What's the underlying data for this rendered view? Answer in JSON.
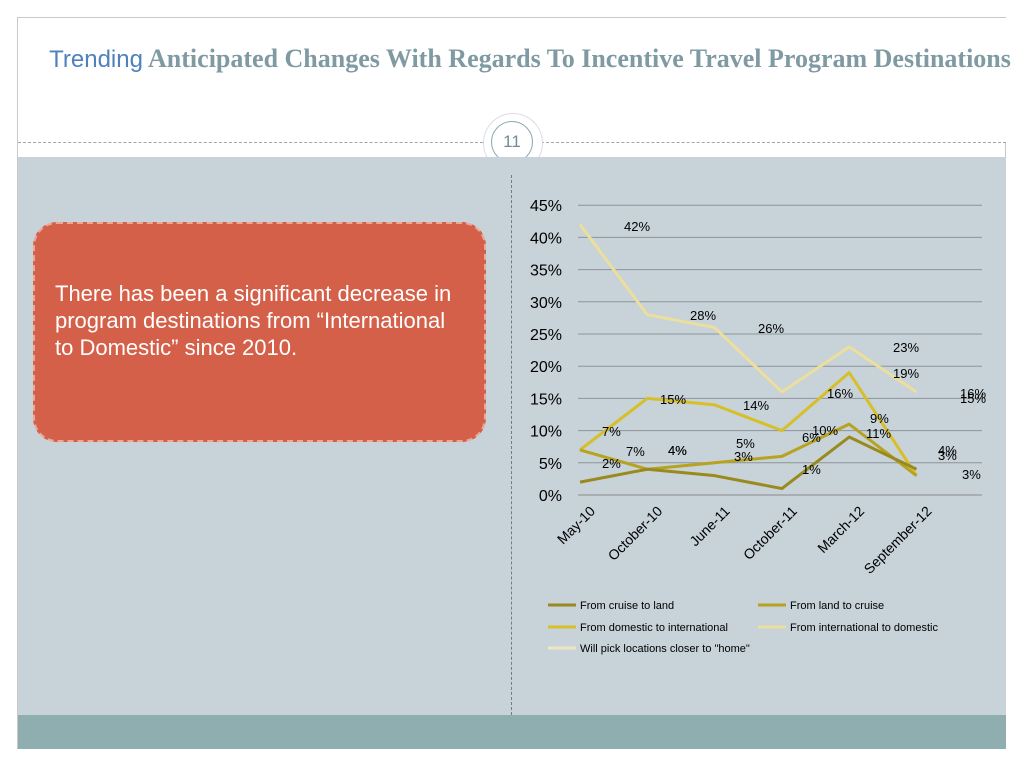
{
  "slide": {
    "title_lead": "Trending",
    "title_rest": "Anticipated Changes With Regards To  Incentive Travel Program Destinations",
    "page_number": "11",
    "callout_text": "There has been a significant decrease in program destinations from “International to Domestic” since 2010."
  },
  "colors": {
    "title": "#7f9aa3",
    "title_lead": "#4f81bd",
    "panel": "#c7d2d9",
    "callout": "#d5604a",
    "footer": "#8eaeb0"
  },
  "chart_data": {
    "type": "line",
    "categories": [
      "May-10",
      "October-10",
      "June-11",
      "October-11",
      "March-12",
      "September-12"
    ],
    "ylim": [
      0,
      45
    ],
    "yticks": [
      "0%",
      "5%",
      "10%",
      "15%",
      "20%",
      "25%",
      "30%",
      "35%",
      "40%",
      "45%"
    ],
    "grid": true,
    "legend_position": "bottom",
    "series": [
      {
        "name": "From cruise to land",
        "color": "#9a8a1e",
        "values": [
          2,
          4,
          3,
          1,
          9,
          4
        ]
      },
      {
        "name": "From land to cruise",
        "color": "#b7a320",
        "values": [
          7,
          4,
          5,
          6,
          11,
          3
        ]
      },
      {
        "name": "From domestic to international",
        "color": "#d7bf27",
        "values": [
          7,
          15,
          14,
          10,
          19,
          3
        ]
      },
      {
        "name": "From international to domestic",
        "color": "#ecdf9c",
        "values": [
          42,
          28,
          26,
          16,
          23,
          16
        ]
      },
      {
        "name": "Will pick locations closer to \"home\"",
        "color": "#ece6c2",
        "values": [
          null,
          null,
          null,
          null,
          null,
          15
        ]
      }
    ],
    "data_labels": [
      {
        "text": "42%"
      },
      {
        "text": "28%"
      },
      {
        "text": "26%"
      },
      {
        "text": "23%"
      },
      {
        "text": "19%"
      },
      {
        "text": "16%"
      },
      {
        "text": "16%"
      },
      {
        "text": "15%"
      },
      {
        "text": "15%"
      },
      {
        "text": "14%"
      },
      {
        "text": "11%"
      },
      {
        "text": "9%"
      },
      {
        "text": "10%"
      },
      {
        "text": "7%"
      },
      {
        "text": "6%"
      },
      {
        "text": "7%"
      },
      {
        "text": "4%"
      },
      {
        "text": "4%"
      },
      {
        "text": "5%"
      },
      {
        "text": "3%"
      },
      {
        "text": "2%"
      },
      {
        "text": "1%"
      },
      {
        "text": "4%"
      },
      {
        "text": "3%"
      },
      {
        "text": "3%"
      }
    ]
  }
}
